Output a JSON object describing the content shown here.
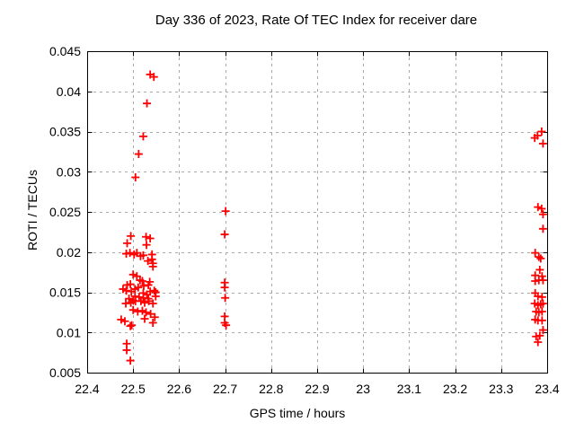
{
  "chart_data": {
    "type": "scatter",
    "title": "Day 336 of 2023, Rate Of TEC Index for receiver dare",
    "xlabel": "GPS time / hours",
    "ylabel": "ROTI / TECUs",
    "xlim": [
      22.4,
      23.4
    ],
    "ylim": [
      0.005,
      0.045
    ],
    "grid": true,
    "legend_position": "none",
    "marker": {
      "shape": "plus",
      "color": "#ff0000",
      "half_size": 4.5,
      "stroke_width": 1.8
    },
    "grid_style": {
      "color": "#a9a9a9",
      "dash": "3,4"
    },
    "axis_color": "#000000",
    "xticks": {
      "values": [
        22.4,
        22.5,
        22.6,
        22.7,
        22.8,
        22.9,
        23.0,
        23.1,
        23.2,
        23.3,
        23.4
      ],
      "labels": [
        "22.4",
        "22.5",
        "22.6",
        "22.7",
        "22.8",
        "22.9",
        "23",
        "23.1",
        "23.2",
        "23.3",
        "23.4"
      ]
    },
    "yticks": {
      "values": [
        0.005,
        0.01,
        0.015,
        0.02,
        0.025,
        0.03,
        0.035,
        0.04,
        0.045
      ],
      "labels": [
        "0.005",
        "0.01",
        "0.015",
        "0.02",
        "0.025",
        "0.03",
        "0.035",
        "0.04",
        "0.045"
      ]
    },
    "series": [
      {
        "name": "ROTI",
        "points": [
          [
            22.537,
            0.0421
          ],
          [
            22.545,
            0.0418
          ],
          [
            22.53,
            0.0385
          ],
          [
            22.522,
            0.0344
          ],
          [
            22.512,
            0.0322
          ],
          [
            22.505,
            0.0293
          ],
          [
            22.495,
            0.022
          ],
          [
            22.528,
            0.0219
          ],
          [
            22.537,
            0.0217
          ],
          [
            22.487,
            0.0211
          ],
          [
            22.529,
            0.0209
          ],
          [
            22.493,
            0.0199
          ],
          [
            22.508,
            0.0199
          ],
          [
            22.485,
            0.0198
          ],
          [
            22.502,
            0.0197
          ],
          [
            22.541,
            0.0197
          ],
          [
            22.522,
            0.0196
          ],
          [
            22.516,
            0.0195
          ],
          [
            22.541,
            0.0191
          ],
          [
            22.532,
            0.0189
          ],
          [
            22.543,
            0.0186
          ],
          [
            22.543,
            0.0182
          ],
          [
            22.5,
            0.0172
          ],
          [
            22.508,
            0.017
          ],
          [
            22.515,
            0.0165
          ],
          [
            22.52,
            0.0164
          ],
          [
            22.536,
            0.0163
          ],
          [
            22.494,
            0.016
          ],
          [
            22.487,
            0.0159
          ],
          [
            22.533,
            0.0159
          ],
          [
            22.523,
            0.0158
          ],
          [
            22.511,
            0.0156
          ],
          [
            22.478,
            0.0154
          ],
          [
            22.504,
            0.0154
          ],
          [
            22.485,
            0.0152
          ],
          [
            22.546,
            0.0152
          ],
          [
            22.496,
            0.0151
          ],
          [
            22.537,
            0.0151
          ],
          [
            22.549,
            0.015
          ],
          [
            22.522,
            0.0149
          ],
          [
            22.53,
            0.0147
          ],
          [
            22.504,
            0.0145
          ],
          [
            22.549,
            0.0145
          ],
          [
            22.513,
            0.0144
          ],
          [
            22.522,
            0.0143
          ],
          [
            22.491,
            0.0142
          ],
          [
            22.533,
            0.0142
          ],
          [
            22.5,
            0.014
          ],
          [
            22.505,
            0.0139
          ],
          [
            22.517,
            0.0139
          ],
          [
            22.534,
            0.0139
          ],
          [
            22.495,
            0.0137
          ],
          [
            22.525,
            0.0137
          ],
          [
            22.484,
            0.0136
          ],
          [
            22.543,
            0.0136
          ],
          [
            22.5,
            0.0128
          ],
          [
            22.52,
            0.0127
          ],
          [
            22.51,
            0.0126
          ],
          [
            22.528,
            0.0125
          ],
          [
            22.538,
            0.0123
          ],
          [
            22.547,
            0.0119
          ],
          [
            22.525,
            0.0117
          ],
          [
            22.474,
            0.0116
          ],
          [
            22.482,
            0.0114
          ],
          [
            22.543,
            0.0112
          ],
          [
            22.497,
            0.0109
          ],
          [
            22.494,
            0.0108
          ],
          [
            22.486,
            0.0086
          ],
          [
            22.486,
            0.0078
          ],
          [
            22.494,
            0.0065
          ],
          [
            22.701,
            0.0251
          ],
          [
            22.699,
            0.0222
          ],
          [
            22.699,
            0.0162
          ],
          [
            22.699,
            0.0156
          ],
          [
            22.7,
            0.0143
          ],
          [
            22.699,
            0.012
          ],
          [
            22.699,
            0.0112
          ],
          [
            22.702,
            0.0109
          ],
          [
            23.388,
            0.035
          ],
          [
            23.379,
            0.0345
          ],
          [
            23.373,
            0.0342
          ],
          [
            23.391,
            0.0335
          ],
          [
            23.38,
            0.0256
          ],
          [
            23.388,
            0.0254
          ],
          [
            23.391,
            0.0247
          ],
          [
            23.391,
            0.0229
          ],
          [
            23.374,
            0.0199
          ],
          [
            23.382,
            0.0194
          ],
          [
            23.386,
            0.0192
          ],
          [
            23.384,
            0.0178
          ],
          [
            23.374,
            0.0171
          ],
          [
            23.389,
            0.017
          ],
          [
            23.382,
            0.0165
          ],
          [
            23.391,
            0.0165
          ],
          [
            23.374,
            0.0164
          ],
          [
            23.374,
            0.0149
          ],
          [
            23.38,
            0.0145
          ],
          [
            23.389,
            0.0144
          ],
          [
            23.373,
            0.0136
          ],
          [
            23.391,
            0.0136
          ],
          [
            23.386,
            0.0135
          ],
          [
            23.38,
            0.0134
          ],
          [
            23.376,
            0.0126
          ],
          [
            23.389,
            0.0126
          ],
          [
            23.382,
            0.0125
          ],
          [
            23.374,
            0.0116
          ],
          [
            23.38,
            0.0115
          ],
          [
            23.389,
            0.0115
          ],
          [
            23.391,
            0.0103
          ],
          [
            23.384,
            0.0096
          ],
          [
            23.376,
            0.0095
          ],
          [
            23.38,
            0.0088
          ]
        ]
      }
    ]
  }
}
